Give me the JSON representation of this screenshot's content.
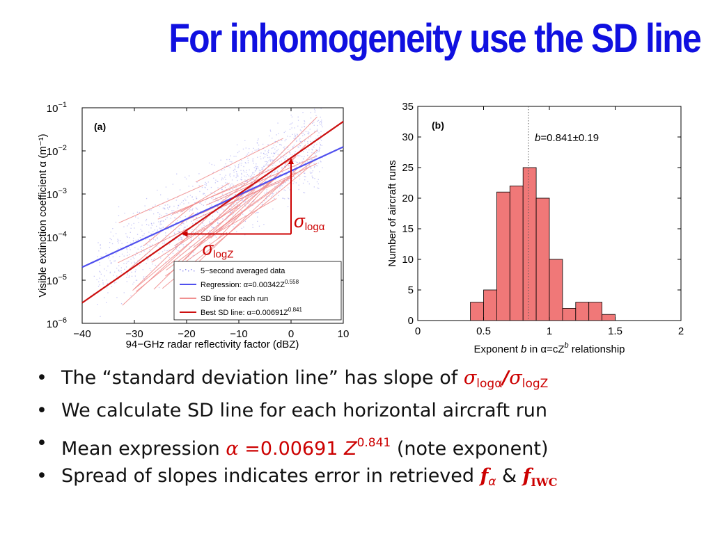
{
  "slide": {
    "title": "For inhomogeneity use the SD line",
    "bullets": [
      {
        "text": "The “standard deviation line” has slope of ",
        "sigma1": "σ",
        "sub1": "logα",
        "slash": "/",
        "sigma2": "σ",
        "sub2": "logZ"
      },
      {
        "text": "We calculate SD line for each horizontal aircraft run"
      },
      {
        "text": "Mean expression ",
        "alpha": "α",
        "eq": " =0.00691 ",
        "z": "Z",
        "exp": "0.841",
        "tail": " (note exponent)"
      },
      {
        "text": "Spread of slopes indicates error in retrieved ",
        "f1": "f",
        "f1sub": "α",
        "amp": " & ",
        "f2": "f",
        "f2sub": "IWC"
      }
    ]
  },
  "chart_data": [
    {
      "type": "scatter",
      "panel_label": "(a)",
      "xlabel": "94−GHz radar reflectivity factor (dBZ)",
      "ylabel": "Visible extinction coefficient α (m⁻¹)",
      "xlim": [
        -40,
        10
      ],
      "ylim_log10": [
        -6,
        -1
      ],
      "x_ticks": [
        -40,
        -30,
        -20,
        -10,
        0,
        10
      ],
      "x_tick_labels": [
        "−40",
        "−30",
        "−20",
        "−10",
        "0",
        "10"
      ],
      "y_ticks_log10": [
        -6,
        -5,
        -4,
        -3,
        -2,
        -1
      ],
      "y_tick_base": "10",
      "y_tick_exps": [
        "−6",
        "−5",
        "−4",
        "−3",
        "−2",
        "−1"
      ],
      "grid": false,
      "legend": {
        "placement": "bottom-right",
        "entries": [
          {
            "label": "5−second averaged data",
            "color": "#8888ee",
            "style": "points"
          },
          {
            "label": "Regression: α=0.00342Z",
            "exp": "0.558",
            "color": "#5050ee",
            "style": "line"
          },
          {
            "label": "SD line for each run",
            "color": "#f09090",
            "style": "line"
          },
          {
            "label": "Best SD line: α=0.00691Z",
            "exp": "0.841",
            "color": "#cc1010",
            "style": "line"
          }
        ]
      },
      "regression_line": {
        "coefficient": 0.00342,
        "exponent": 0.558,
        "color": "#5050ee"
      },
      "best_sd_line": {
        "coefficient": 0.00691,
        "exponent": 0.841,
        "color": "#cc1010"
      },
      "sd_run_slope_range": [
        0.45,
        1.3
      ],
      "annotations": [
        {
          "text": "σ",
          "sub": "logα",
          "at_dbz": 0,
          "color": "#cc0000"
        },
        {
          "text": "σ",
          "sub": "logZ",
          "at_dbz": -21,
          "color": "#cc0000"
        }
      ]
    },
    {
      "type": "bar",
      "panel_label": "(b)",
      "xlabel_parts": [
        "Exponent ",
        "b",
        " in α=cZ",
        "b",
        " relationship"
      ],
      "ylabel": "Number of aircraft runs",
      "xlim": [
        0,
        2
      ],
      "ylim": [
        0,
        35
      ],
      "x_ticks": [
        0,
        0.5,
        1,
        1.5,
        2
      ],
      "x_tick_labels": [
        "0",
        "0.5",
        "1",
        "1.5",
        "2"
      ],
      "y_ticks": [
        0,
        5,
        10,
        15,
        20,
        25,
        30,
        35
      ],
      "bin_width": 0.1,
      "bin_starts": [
        0.4,
        0.5,
        0.6,
        0.7,
        0.8,
        0.9,
        1.0,
        1.1,
        1.2,
        1.3,
        1.4
      ],
      "values": [
        3,
        5,
        21,
        22,
        25,
        20,
        10,
        2,
        3,
        3,
        1
      ],
      "bar_color": "#f07878",
      "mean_line": 0.841,
      "annotation": {
        "b": "b",
        "text": "=0.841±0.19"
      }
    }
  ]
}
